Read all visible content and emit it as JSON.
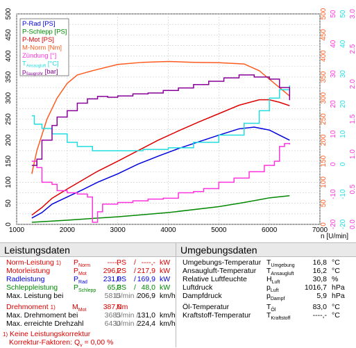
{
  "chart_data": {
    "type": "line",
    "xlabel": "n [U/min]",
    "x_ticks": [
      1000,
      2000,
      3000,
      4000,
      5000,
      6000,
      7000
    ],
    "left_ticks": [
      0,
      50,
      100,
      150,
      200,
      250,
      300,
      350,
      400,
      450,
      500
    ],
    "right_axes": [
      {
        "color": "#ff5a1e",
        "ticks": [
          0,
          50,
          100,
          150,
          200,
          250,
          300,
          350,
          400,
          450,
          500
        ]
      },
      {
        "color": "#ff33dd",
        "ticks": [
          -20,
          -10,
          0,
          10,
          20,
          30,
          40,
          50
        ]
      },
      {
        "color": "#22dddd",
        "ticks": [
          -20,
          -10,
          0,
          10,
          20,
          30,
          40,
          50
        ]
      },
      {
        "color": "#ff33dd",
        "ticks": [
          0.0,
          0.5,
          1.0,
          1.5,
          2.0,
          2.5,
          3.0
        ]
      }
    ],
    "legend": {
      "position": "top-left",
      "entries": [
        {
          "label": "P-Rad [PS]",
          "color": "#0000dd"
        },
        {
          "label": "P-Schlepp [PS]",
          "color": "#008800"
        },
        {
          "label": "P-Mot [PS]",
          "color": "#dd0000"
        },
        {
          "label": "M-Norm [Nm]",
          "color": "#ff5a1e"
        },
        {
          "label": "Zündung [°]",
          "color": "#ff33dd"
        },
        {
          "label": "T",
          "sub": "Ansaugluft",
          "tail": " [°C]",
          "color": "#22dddd"
        },
        {
          "label": "p",
          "sub": "Saugrohr",
          "tail": " [bar]",
          "color": "#880099"
        }
      ]
    },
    "series": [
      {
        "name": "P-Rad [PS]",
        "color": "#0000dd",
        "x": [
          1300,
          1500,
          1700,
          2000,
          2300,
          2600,
          3000,
          3400,
          3800,
          4200,
          4600,
          5000,
          5400,
          5700,
          6000,
          6200,
          6400
        ],
        "y": [
          15,
          28,
          48,
          65,
          82,
          100,
          120,
          143,
          162,
          180,
          196,
          212,
          227,
          231,
          224,
          212,
          200
        ]
      },
      {
        "name": "P-Schlepp [PS]",
        "color": "#008800",
        "x": [
          1300,
          2000,
          3000,
          4000,
          5000,
          5500,
          6000,
          6400
        ],
        "y": [
          5,
          10,
          18,
          28,
          42,
          52,
          63,
          68
        ]
      },
      {
        "name": "P-Mot [PS]",
        "color": "#dd0000",
        "x": [
          1300,
          1500,
          1700,
          2000,
          2300,
          2600,
          3000,
          3400,
          3800,
          4200,
          4600,
          5000,
          5400,
          5800,
          6000,
          6200,
          6400
        ],
        "y": [
          22,
          40,
          62,
          84,
          105,
          126,
          150,
          175,
          200,
          222,
          243,
          263,
          283,
          296,
          296,
          290,
          282
        ]
      },
      {
        "name": "M-Norm [Nm]",
        "color": "#ff5a1e",
        "x": [
          1300,
          1400,
          1600,
          1800,
          2000,
          2200,
          2500,
          3000,
          3500,
          4000,
          4500,
          5000,
          5500,
          5800,
          6000,
          6200,
          6400
        ],
        "y": [
          120,
          175,
          250,
          300,
          335,
          355,
          365,
          380,
          385,
          387,
          385,
          384,
          381,
          365,
          345,
          325,
          305
        ]
      },
      {
        "name": "Zündung [°]",
        "color": "#ff33dd",
        "x": [
          1300,
          1400,
          1500,
          1700,
          1800,
          2000,
          2200,
          2400,
          2500,
          2600,
          2700,
          3000,
          3300,
          3600,
          3900,
          4200,
          4500,
          4700,
          5000,
          5300,
          5600,
          5900,
          6100,
          6200,
          6300,
          6400
        ],
        "y": [
          150,
          135,
          100,
          95,
          80,
          75,
          72,
          65,
          5,
          30,
          48,
          52,
          56,
          60,
          62,
          75,
          78,
          85,
          100,
          110,
          125,
          140,
          150,
          185,
          192,
          190
        ]
      },
      {
        "name": "T Ansaugluft [°C]",
        "color": "#22dddd",
        "x": [
          1300,
          1350,
          1500,
          1700,
          2000,
          2200,
          2500,
          3000,
          3500,
          4000,
          4500,
          5000,
          5500,
          5800,
          6000,
          6200,
          6400
        ],
        "y": [
          258,
          238,
          228,
          215,
          195,
          185,
          175,
          175,
          178,
          182,
          195,
          212,
          240,
          270,
          300,
          320,
          330
        ]
      },
      {
        "name": "p Saugrohr [bar]",
        "color": "#880099",
        "x": [
          1300,
          1400,
          1500,
          1700,
          1800,
          2000,
          2200,
          2400,
          2600,
          2800,
          3000,
          3300,
          3600,
          3900,
          4200,
          4500,
          4800,
          5100,
          5400,
          5700,
          6000,
          6200,
          6400
        ],
        "y": [
          140,
          155,
          200,
          235,
          255,
          270,
          288,
          298,
          304,
          302,
          305,
          310,
          312,
          318,
          324,
          332,
          340,
          348,
          355,
          350,
          345,
          325,
          295
        ]
      }
    ]
  },
  "leistung": {
    "title": "Leistungsdaten",
    "rows": [
      {
        "label": "Norm-Leistung",
        "mark": "1)",
        "sym": "P",
        "sub": "Norm",
        "v1": "----,-",
        "u1": "PS",
        "v2": "----,-",
        "u2": "kW",
        "color": "#dd0000"
      },
      {
        "label": "Motorleistung",
        "mark": "",
        "sym": "P",
        "sub": "Mot",
        "v1": "296,2",
        "u1": "PS",
        "v2": "217,9",
        "u2": "kW",
        "color": "#dd0000"
      },
      {
        "label": "Radleistung",
        "mark": "",
        "sym": "P",
        "sub": "Rad",
        "v1": "231,0",
        "u1": "PS",
        "v2": "169,9",
        "u2": "kW",
        "color": "#0000dd"
      },
      {
        "label": "Schleppleistung",
        "mark": "",
        "sym": "P",
        "sub": "Schlepp",
        "v1": "65,3",
        "u1": "PS",
        "v2": "48,0",
        "u2": "kW",
        "color": "#008800"
      }
    ],
    "max_leistung": {
      "label": "Max. Leistung bei",
      "v1": "5815",
      "u1": "U/min",
      "v2": "206,9",
      "u2": "km/h"
    },
    "drehmoment": {
      "label": "Drehmoment",
      "mark": "1)",
      "sym": "M",
      "sub": "Mot",
      "v1": "387,0",
      "u1": "Nm"
    },
    "max_drehmoment": {
      "label": "Max. Drehmoment bei",
      "v1": "3685",
      "u1": "U/min",
      "v2": "131,0",
      "u2": "km/h"
    },
    "max_drehzahl": {
      "label": "Max. erreichte Drehzahl",
      "v1": "6430",
      "u1": "U/min",
      "v2": "224,4",
      "u2": "km/h"
    },
    "note1": "Keine Leistungskorrektur",
    "note1_mark": "1)",
    "note2": "Korrektur-Faktoren: Q",
    "note2_sub": "v",
    "note2_val": "=   0,00 %"
  },
  "umgebung": {
    "title": "Umgebungsdaten",
    "rows": [
      {
        "label": "Umgebungs-Temperatur",
        "sym": "T",
        "sub": "Umgebung",
        "val": "16,8",
        "unit": "°C"
      },
      {
        "label": "Ansaugluft-Temperatur",
        "sym": "T",
        "sub": "Ansaugluft",
        "val": "16,2",
        "unit": "°C"
      },
      {
        "label": "Relative Luftfeuchte",
        "sym": "H",
        "sub": "Luft",
        "val": "30,8",
        "unit": "%"
      },
      {
        "label": "Luftdruck",
        "sym": "p",
        "sub": "Luft",
        "val": "1016,7",
        "unit": "hPa"
      },
      {
        "label": "Dampfdruck",
        "sym": "p",
        "sub": "Dampf",
        "val": "5,9",
        "unit": "hPa"
      },
      {
        "label": "Öl-Temperatur",
        "sym": "T",
        "sub": "Öl",
        "val": "83,0",
        "unit": "°C"
      },
      {
        "label": "Kraftstoff-Temperatur",
        "sym": "T",
        "sub": "Kraftstoff",
        "val": "----,-",
        "unit": "°C"
      }
    ]
  }
}
